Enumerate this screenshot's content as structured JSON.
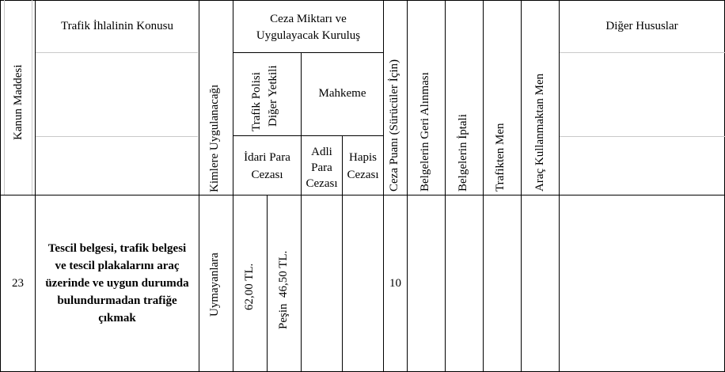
{
  "headers": {
    "kanun_maddesi": "Kanun Maddesi",
    "ihlal_konusu": "Trafik İhlalinin Konusu",
    "kimlere": "Kimlere Uygulanacağı",
    "ceza_miktari_line1": "Ceza Miktarı ve",
    "ceza_miktari_line2": "Uygulayacak Kuruluş",
    "trafik_polisi_line1": "Trafik Polisi",
    "trafik_polisi_line2": "Diğer Yetkili",
    "mahkeme": "Mahkeme",
    "idari_line1": "İdari Para",
    "idari_line2": "Cezası",
    "adli_line1": "Adli",
    "adli_line2": "Para",
    "adli_line3": "Cezası",
    "hapis_line1": "Hapis",
    "hapis_line2": "Cezası",
    "ceza_puani": "Ceza Puanı (Sürücüler İçin)",
    "belge_geri": "Belgelerin Geri Alınması",
    "belge_iptal": "Belgelerin İptali",
    "trafikten_men": "Trafikten Men",
    "arac_kullanmaktan_men": "Araç Kullanmaktan Men",
    "diger_hususlar": "Diğer Hususlar"
  },
  "row": {
    "madde": "23",
    "konu_lines": [
      "Tescil belgesi, trafik belgesi",
      "ve tescil plakalarını araç",
      "üzerinde ve uygun durumda",
      "bulundurmadan trafiğe",
      "çıkmak"
    ],
    "kimlere": "Uymayanlara",
    "idari_ceza": "62,00 TL.",
    "pesin": "Peşin  46,50 TL.",
    "adli": "",
    "hapis": "",
    "ceza_puani": "10",
    "belge_geri": "",
    "belge_iptal": "",
    "trafikten_men": "",
    "arac_men": "",
    "diger": ""
  }
}
